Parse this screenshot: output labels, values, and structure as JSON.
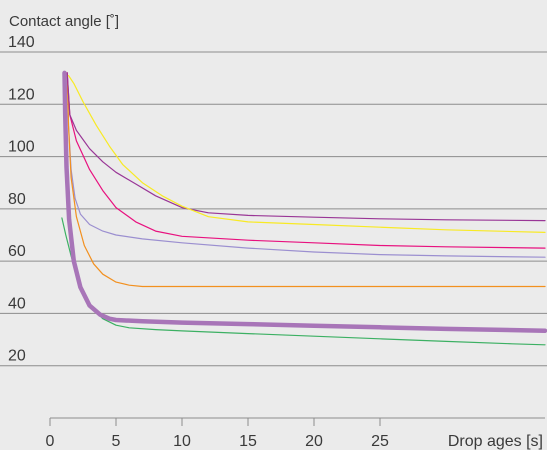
{
  "chart_data": {
    "type": "line",
    "ylabel": "Contact angle [˚]",
    "xlabel": "Drop ages [s]",
    "xlim": [
      0,
      37.5
    ],
    "ylim": [
      0,
      140
    ],
    "xticks": [
      0,
      5,
      10,
      15,
      20,
      25
    ],
    "yticks": [
      20,
      40,
      60,
      80,
      100,
      120,
      140
    ],
    "grid": "horizontal",
    "background": "#ebebeb",
    "gridColor": "#8c8c8c",
    "series": [
      {
        "color": "#3cb063",
        "width": 1.2,
        "points": [
          [
            0.9,
            76.5
          ],
          [
            1.2,
            70
          ],
          [
            1.6,
            62
          ],
          [
            2.2,
            52
          ],
          [
            3.0,
            43
          ],
          [
            4.0,
            38
          ],
          [
            5.0,
            35.5
          ],
          [
            6.0,
            34.5
          ],
          [
            8,
            33.8
          ],
          [
            10,
            33.3
          ],
          [
            15,
            32.3
          ],
          [
            20,
            31.3
          ],
          [
            25,
            30.3
          ],
          [
            30,
            29.3
          ],
          [
            35,
            28.4
          ],
          [
            37.5,
            28
          ]
        ]
      },
      {
        "color": "#9b8fd0",
        "width": 1.2,
        "points": [
          [
            1.3,
            132
          ],
          [
            1.4,
            112
          ],
          [
            1.6,
            95
          ],
          [
            1.9,
            84
          ],
          [
            2.3,
            78
          ],
          [
            3.0,
            74
          ],
          [
            4.0,
            71.5
          ],
          [
            5.0,
            70
          ],
          [
            7,
            68.5
          ],
          [
            10,
            67
          ],
          [
            15,
            65
          ],
          [
            20,
            63.5
          ],
          [
            25,
            62.5
          ],
          [
            30,
            62
          ],
          [
            37.5,
            61.5
          ]
        ]
      },
      {
        "color": "#f2901f",
        "width": 1.2,
        "points": [
          [
            1.3,
            132
          ],
          [
            1.4,
            112
          ],
          [
            1.6,
            92
          ],
          [
            2.0,
            77
          ],
          [
            2.6,
            66
          ],
          [
            3.3,
            59
          ],
          [
            4.0,
            55
          ],
          [
            5.0,
            52
          ],
          [
            6.0,
            50.8
          ],
          [
            7.0,
            50.3
          ],
          [
            10,
            50.3
          ],
          [
            20,
            50.3
          ],
          [
            30,
            50.3
          ],
          [
            37.5,
            50.3
          ]
        ]
      },
      {
        "color": "#e8117f",
        "width": 1.2,
        "points": [
          [
            1.3,
            132
          ],
          [
            1.5,
            116
          ],
          [
            2.0,
            106
          ],
          [
            3.0,
            95
          ],
          [
            4.0,
            87
          ],
          [
            5.0,
            80.5
          ],
          [
            6.5,
            75
          ],
          [
            8.0,
            71.5
          ],
          [
            10,
            69.5
          ],
          [
            15,
            68
          ],
          [
            20,
            67
          ],
          [
            25,
            66
          ],
          [
            30,
            65.5
          ],
          [
            37.5,
            65
          ]
        ]
      },
      {
        "color": "#993696",
        "width": 1.2,
        "points": [
          [
            1.3,
            132
          ],
          [
            1.5,
            116
          ],
          [
            2.0,
            110
          ],
          [
            3.0,
            103
          ],
          [
            4.0,
            98
          ],
          [
            5.0,
            94
          ],
          [
            6.5,
            89.5
          ],
          [
            8.0,
            85
          ],
          [
            10,
            80.5
          ],
          [
            12,
            78.5
          ],
          [
            15,
            77.5
          ],
          [
            20,
            76.8
          ],
          [
            25,
            76.2
          ],
          [
            30,
            75.8
          ],
          [
            37.5,
            75.5
          ]
        ]
      },
      {
        "color": "#f8ea24",
        "width": 1.2,
        "points": [
          [
            1.4,
            131
          ],
          [
            1.8,
            128
          ],
          [
            2.5,
            121
          ],
          [
            3.5,
            112
          ],
          [
            4.5,
            104
          ],
          [
            5.5,
            97
          ],
          [
            7.0,
            90
          ],
          [
            8.5,
            85
          ],
          [
            10,
            81
          ],
          [
            12,
            77
          ],
          [
            15,
            75
          ],
          [
            20,
            74
          ],
          [
            25,
            73
          ],
          [
            30,
            72
          ],
          [
            37.5,
            71
          ]
        ]
      },
      {
        "color": "#a875b8",
        "width": 4.5,
        "points": [
          [
            1.1,
            132
          ],
          [
            1.15,
            116
          ],
          [
            1.25,
            96
          ],
          [
            1.45,
            76
          ],
          [
            1.8,
            60
          ],
          [
            2.3,
            50
          ],
          [
            3.0,
            43
          ],
          [
            3.8,
            39.5
          ],
          [
            4.5,
            38
          ],
          [
            5.0,
            37.5
          ],
          [
            7,
            37
          ],
          [
            10,
            36.5
          ],
          [
            15,
            35.9
          ],
          [
            20,
            35.3
          ],
          [
            25,
            34.7
          ],
          [
            30,
            34.1
          ],
          [
            37.5,
            33.4
          ]
        ]
      }
    ]
  }
}
